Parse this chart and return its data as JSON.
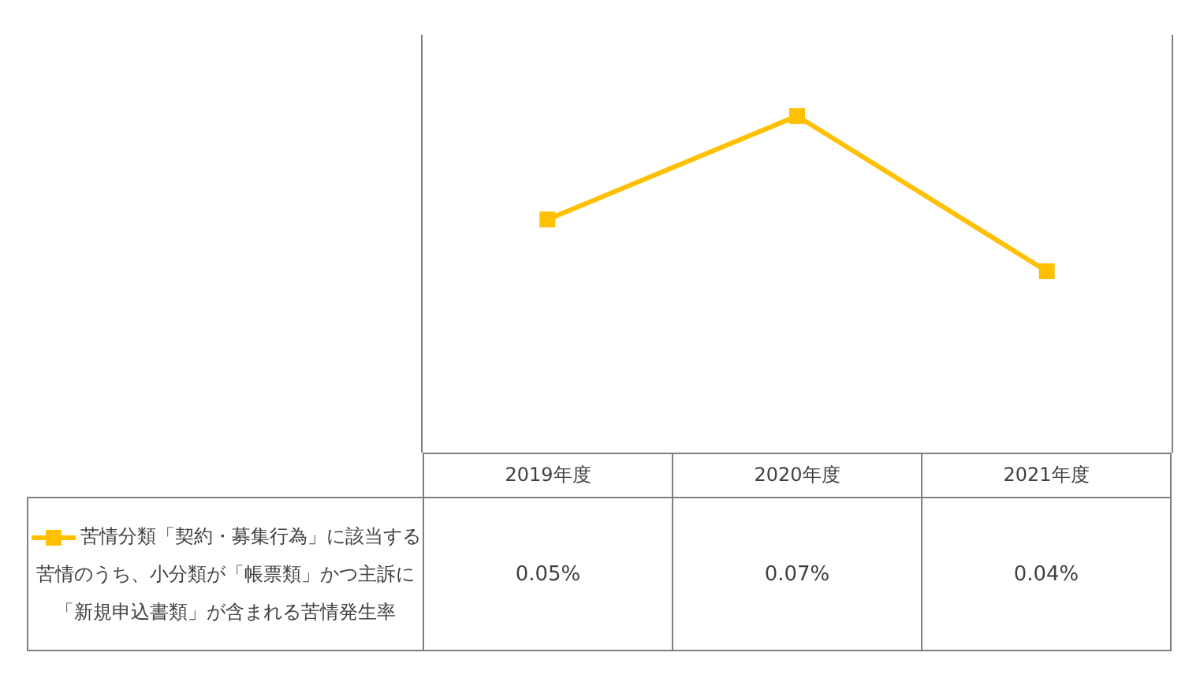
{
  "chart_data": {
    "type": "line",
    "categories": [
      "2019年度",
      "2020年度",
      "2021年度"
    ],
    "series": [
      {
        "name": "苦情分類「契約・募集行為」に該当する苦情のうち、小分類が「帳票類」かつ主訴に「新規申込書類」が含まれる苦情発生率",
        "color": "#ffc000",
        "values": [
          0.05,
          0.07,
          0.04
        ],
        "value_labels": [
          "0.05%",
          "0.07%",
          "0.04%"
        ]
      }
    ],
    "marker": "square",
    "legend": "bottom left",
    "grid": false
  }
}
